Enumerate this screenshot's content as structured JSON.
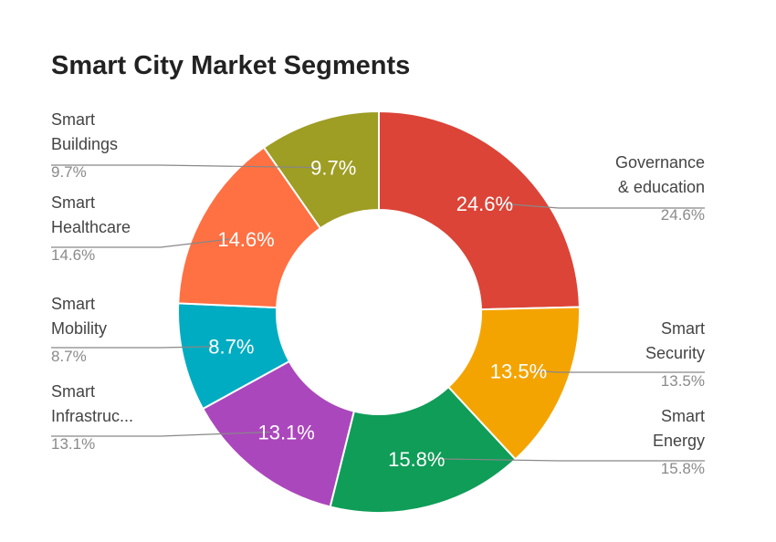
{
  "chart_data": {
    "type": "pie",
    "title": "Smart City Market Segments",
    "donut": true,
    "slices": [
      {
        "name_lines": [
          "Governance",
          "& education"
        ],
        "value": 24.6,
        "label": "24.6%",
        "legend_value": "24.6%",
        "color": "#DB4437"
      },
      {
        "name_lines": [
          "Smart",
          "Security"
        ],
        "value": 13.5,
        "label": "13.5%",
        "legend_value": "13.5%",
        "color": "#F4A400"
      },
      {
        "name_lines": [
          "Smart",
          "Energy"
        ],
        "value": 15.8,
        "label": "15.8%",
        "legend_value": "15.8%",
        "color": "#0F9D58"
      },
      {
        "name_lines": [
          "Smart",
          "Infrastruc..."
        ],
        "value": 13.1,
        "label": "13.1%",
        "legend_value": "13.1%",
        "color": "#AB47BC"
      },
      {
        "name_lines": [
          "Smart",
          "Mobility"
        ],
        "value": 8.7,
        "label": "8.7%",
        "legend_value": "8.7%",
        "color": "#00ACC1"
      },
      {
        "name_lines": [
          "Smart",
          "Healthcare"
        ],
        "value": 14.6,
        "label": "14.6%",
        "legend_value": "14.6%",
        "color": "#FF7043"
      },
      {
        "name_lines": [
          "Smart",
          "Buildings"
        ],
        "value": 9.7,
        "label": "9.7%",
        "legend_value": "9.7%",
        "color": "#9E9D24"
      }
    ]
  }
}
